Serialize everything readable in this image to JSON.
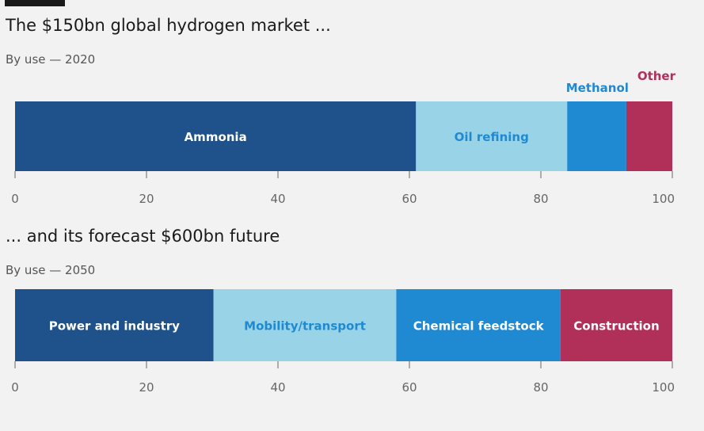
{
  "colors": {
    "dark_blue": "#1f528a",
    "light_blue": "#98d3e8",
    "mid_blue": "#1f8ad1",
    "crimson": "#b0305a",
    "tick": "#666666",
    "white": "#ffffff"
  },
  "chart_data": [
    {
      "type": "bar",
      "orientation": "horizontal-stacked",
      "title": "The $150bn global hydrogen market ...",
      "subtitle": "By use — 2020",
      "xlim": [
        0,
        100
      ],
      "xticks": [
        0,
        20,
        40,
        60,
        80,
        100
      ],
      "grid": false,
      "series": [
        {
          "name": "Ammonia",
          "value": 61,
          "color": "#1f528a",
          "label_color": "#ffffff",
          "label_position": "inside"
        },
        {
          "name": "Oil refining",
          "value": 23,
          "color": "#98d3e8",
          "label_color": "#1f8ad1",
          "label_position": "inside"
        },
        {
          "name": "Methanol",
          "value": 9,
          "color": "#1f8ad1",
          "label_color": "#1f8ad1",
          "label_position": "above"
        },
        {
          "name": "Other",
          "value": 7,
          "color": "#b0305a",
          "label_color": "#b0305a",
          "label_position": "above"
        }
      ]
    },
    {
      "type": "bar",
      "orientation": "horizontal-stacked",
      "title": "... and its forecast $600bn future",
      "subtitle": "By use — 2050",
      "xlim": [
        0,
        100
      ],
      "xticks": [
        0,
        20,
        40,
        60,
        80,
        100
      ],
      "grid": false,
      "series": [
        {
          "name": "Power and industry",
          "value": 30.2,
          "color": "#1f528a",
          "label_color": "#ffffff",
          "label_position": "inside"
        },
        {
          "name": "Mobility/transport",
          "value": 27.8,
          "color": "#98d3e8",
          "label_color": "#1f8ad1",
          "label_position": "inside"
        },
        {
          "name": "Chemical feedstock",
          "value": 25,
          "color": "#1f8ad1",
          "label_color": "#ffffff",
          "label_position": "inside"
        },
        {
          "name": "Construction",
          "value": 17,
          "color": "#b0305a",
          "label_color": "#ffffff",
          "label_position": "inside"
        }
      ]
    }
  ]
}
